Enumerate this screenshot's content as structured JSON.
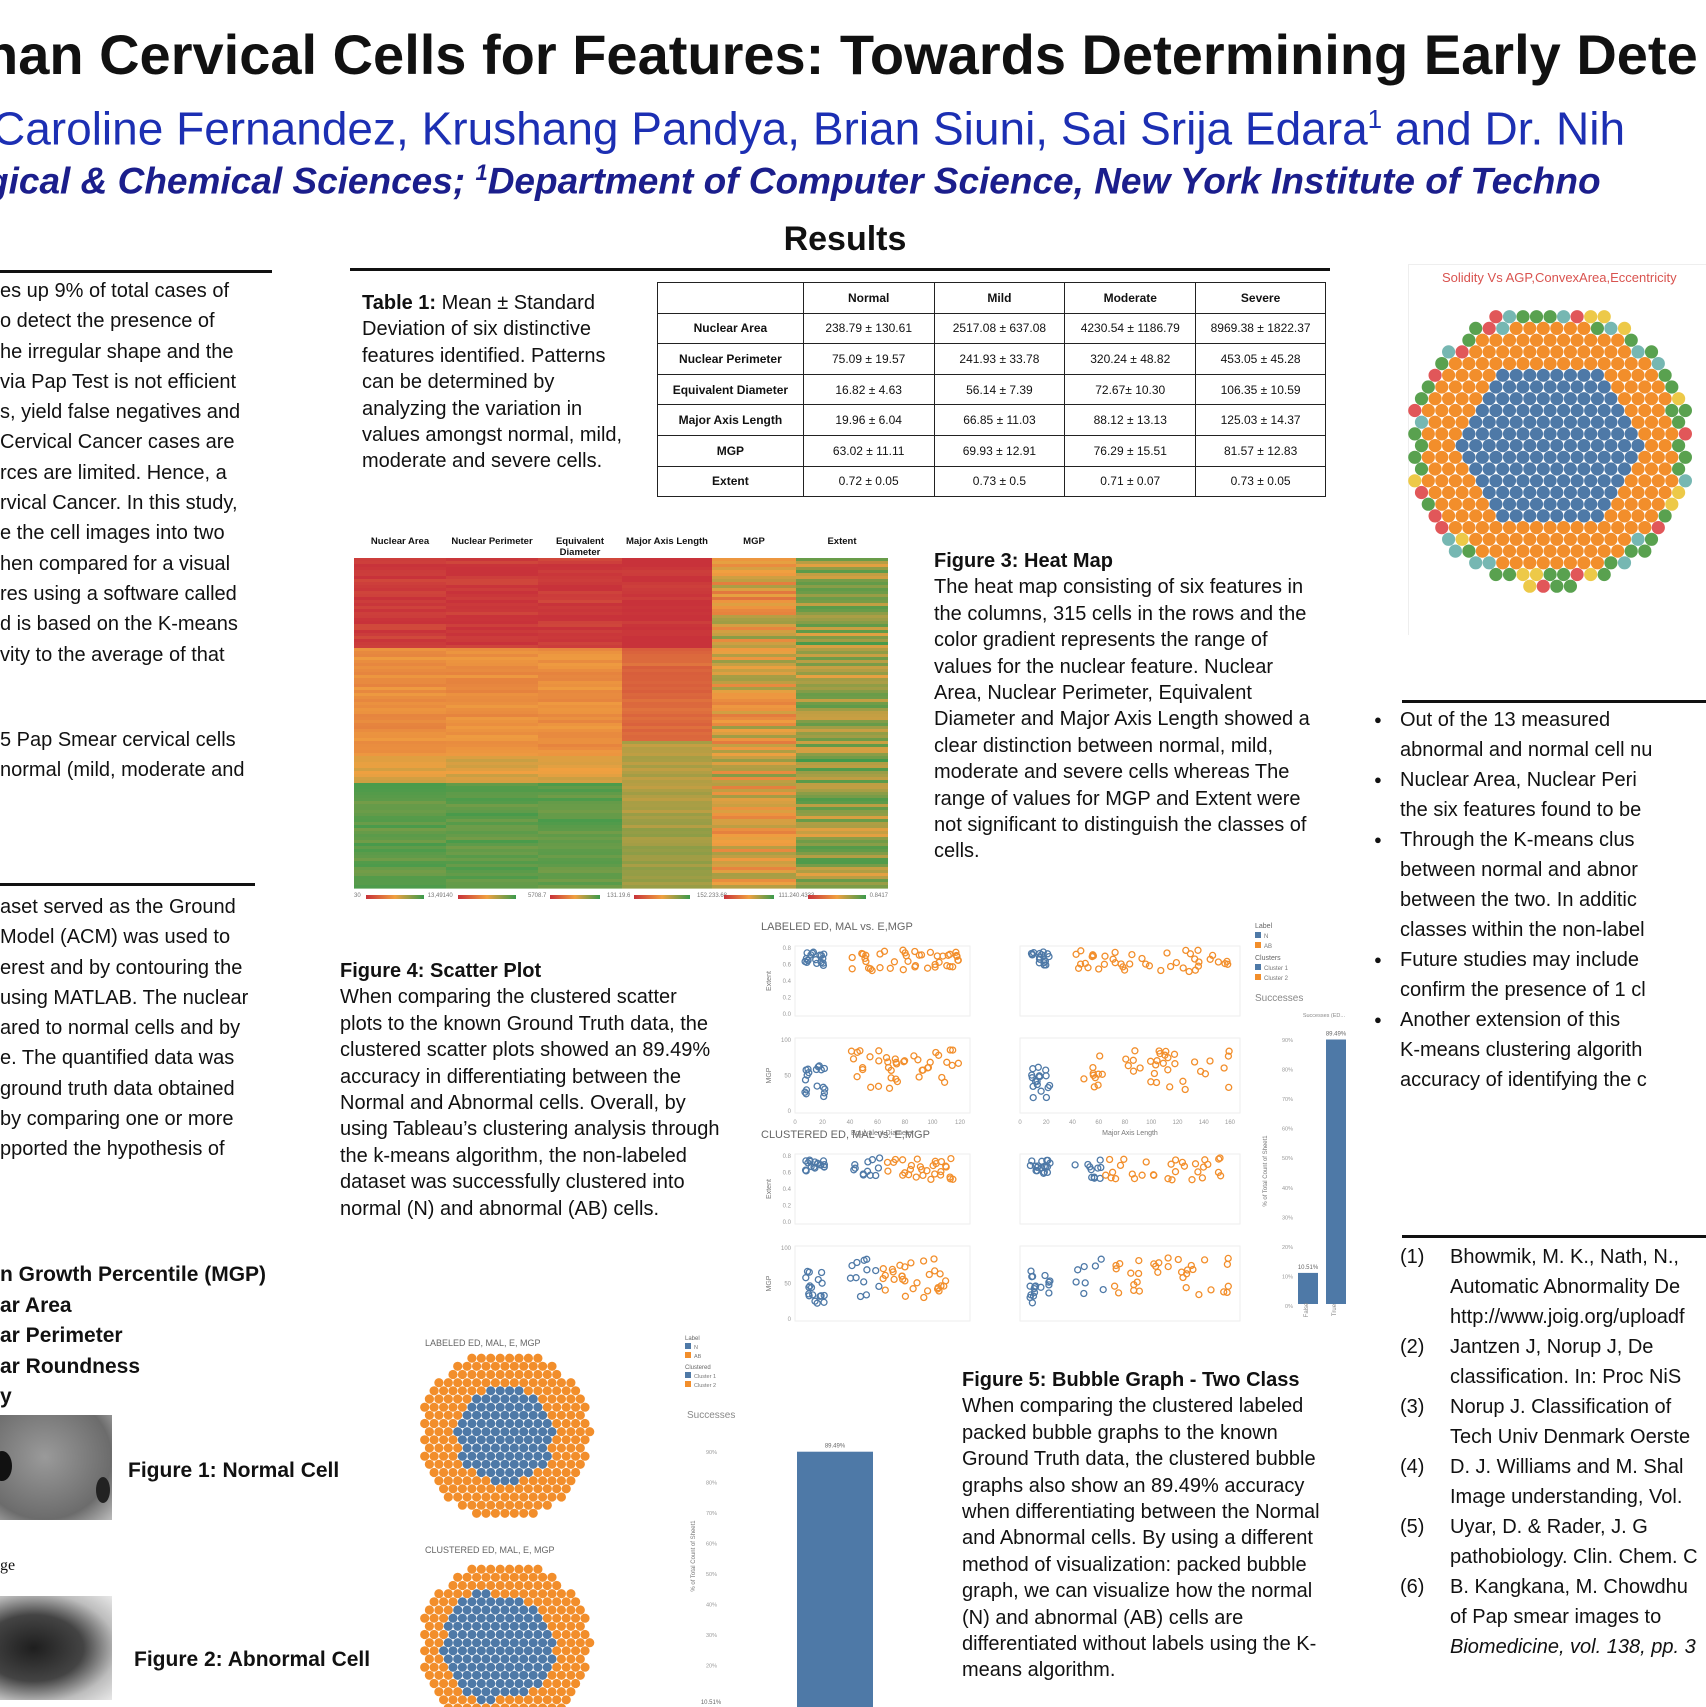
{
  "header": {
    "title": "nan Cervical Cells for Features: Towards Determining Early Dete",
    "authors_main": "Caroline Fernandez, Krushang Pandya, Brian Siuni, Sai Srija Edara",
    "authors_sup": "1",
    "authors_tail": " and Dr. Nih",
    "affiliation_pre": "gical & Chemical Sciences; ",
    "affiliation_sup": "1",
    "affiliation_post": "Department of Computer Science, New York Institute of Techno"
  },
  "results_heading": "Results",
  "left": {
    "intro_lines": [
      "es up 9% of total cases of",
      "o detect the presence of",
      "he irregular shape and the",
      "via Pap Test is not efficient",
      "s, yield false negatives and",
      "Cervical Cancer cases are",
      "rces are limited. Hence, a",
      "rvical Cancer. In this study,",
      "e the cell images into two",
      "hen compared for a visual",
      "res using a software called",
      "d is based on the K-means",
      "vity to the average of that"
    ],
    "data_lines": [
      "5 Pap Smear cervical cells",
      "normal (mild, moderate and"
    ],
    "method_lines": [
      "aset served as the Ground",
      "Model (ACM) was used to",
      "erest and by contouring the",
      "using MATLAB. The nuclear",
      "ared to normal cells and by",
      "e. The quantified data was",
      "ground truth data obtained",
      "by comparing one or more",
      "pported the hypothesis of"
    ],
    "features": [
      "n Growth Percentile (MGP)",
      "ar  Area",
      "ar Perimeter",
      "ar Roundness",
      "y"
    ],
    "fig1_label": "Figure 1: Normal Cell",
    "fig2_label": "Figure 2: Abnormal Cell",
    "img_caption_fragment": "ge"
  },
  "table1": {
    "caption_bold": "Table 1:",
    "caption_text": " Mean ± Standard Deviation of six distinctive features identified. Patterns can be determined by analyzing the variation in values amongst normal, mild, moderate and severe cells.",
    "columns": [
      "",
      "Normal",
      "Mild",
      "Moderate",
      "Severe"
    ],
    "rows": [
      [
        "Nuclear Area",
        "238.79 ± 130.61",
        "2517.08 ± 637.08",
        "4230.54 ± 1186.79",
        "8969.38 ± 1822.37"
      ],
      [
        "Nuclear Perimeter",
        "75.09 ± 19.57",
        "241.93 ± 33.78",
        "320.24 ± 48.82",
        "453.05 ± 45.28"
      ],
      [
        "Equivalent Diameter",
        "16.82 ± 4.63",
        "56.14 ± 7.39",
        "72.67± 10.30",
        "106.35 ± 10.59"
      ],
      [
        "Major Axis Length",
        "19.96 ± 6.04",
        "66.85 ± 11.03",
        "88.12 ± 13.13",
        "125.03 ± 14.37"
      ],
      [
        "MGP",
        "63.02 ± 11.11",
        "69.93 ± 12.91",
        "76.29 ± 15.51",
        "81.57 ± 12.83"
      ],
      [
        "Extent",
        "0.72 ± 0.05",
        "0.73 ± 0.5",
        "0.71 ± 0.07",
        "0.73 ± 0.05"
      ]
    ]
  },
  "heatmap": {
    "columns": [
      "Nuclear Area",
      "Nuclear Perimeter",
      "Equivalent Diameter",
      "Major Axis Length",
      "MGP",
      "Extent"
    ],
    "scale_labels": [
      [
        "30",
        "13,491"
      ],
      [
        "40",
        "570"
      ],
      [
        "8.7",
        "131.1"
      ],
      [
        "9.6",
        "152.2"
      ],
      [
        "33.68",
        "111.24"
      ],
      [
        "0.4333",
        "0.8417"
      ]
    ],
    "colors": {
      "red": "#c8323a",
      "orange": "#f0a040",
      "green": "#3a9a4c"
    }
  },
  "fig3": {
    "title": "Figure 3: Heat Map",
    "text": "The heat map consisting of six features in the columns, 315 cells in the rows and the color gradient represents the range of values for the nuclear feature. Nuclear Area, Nuclear Perimeter, Equivalent Diameter and Major Axis Length showed a clear distinction between normal, mild, moderate and severe cells whereas The range of values for MGP and Extent were not significant to distinguish the classes of cells."
  },
  "fig4": {
    "title": "Figure 4: Scatter Plot",
    "text": "When comparing the clustered scatter plots to the known Ground Truth data, the clustered scatter plots showed an 89.49% accuracy in differentiating between the Normal and Abnormal cells. Overall, by using Tableau’s clustering analysis through the k-means algorithm, the non-labeled dataset was successfully clustered into normal (N) and abnormal (AB) cells."
  },
  "scatter": {
    "labeled_title": "LABELED ED, MAL vs. E,MGP",
    "clustered_title": "CLUSTERED ED, MAL vs. E,MGP",
    "ylabels": [
      "Extent",
      "MGP"
    ],
    "xlabels": [
      "Equivalent Diameter",
      "Major Axis Length"
    ],
    "xticks_ed": [
      "0",
      "20",
      "40",
      "60",
      "80",
      "100",
      "120"
    ],
    "xticks_mal": [
      "0",
      "20",
      "40",
      "60",
      "80",
      "100",
      "120",
      "140",
      "160"
    ],
    "yticks_extent": [
      "0.8",
      "0.6",
      "0.4",
      "0.2",
      "0.0"
    ],
    "yticks_mgp": [
      "100",
      "50",
      "0"
    ],
    "legend": {
      "label_title": "Label",
      "label_items": [
        "N",
        "AB"
      ],
      "clusters_title": "Clusters",
      "cluster_items": [
        "Cluster 1",
        "Cluster 2"
      ],
      "successes_title": "Successes",
      "successes_sub": "Successes (ED..."
    },
    "colors": {
      "blue": "#4e79a7",
      "orange": "#f28e2b"
    }
  },
  "success_bar": {
    "ylabel": "% of Total Count of Sheet1",
    "yticks": [
      "90%",
      "80%",
      "70%",
      "60%",
      "50%",
      "40%",
      "30%",
      "20%",
      "10%",
      "0%"
    ],
    "categories": [
      "False",
      "True"
    ],
    "value_labels": [
      "10.51%",
      "89.49%"
    ]
  },
  "bubbles_right": {
    "title": "Solidity Vs AGP,ConvexArea,Eccentricity"
  },
  "bubbles_mid": {
    "labeled_title": "LABELED ED, MAL, E, MGP",
    "clustered_title": "CLUSTERED ED, MAL, E, MGP",
    "legend": {
      "label_title": "Label",
      "label_items": [
        "N",
        "AB"
      ],
      "clusters_title": "Clustered",
      "cluster_items": [
        "Cluster 1",
        "Cluster 2"
      ]
    },
    "successes_title": "Successes"
  },
  "chart_data": [
    {
      "type": "bar",
      "title": "Successes",
      "categories": [
        "False",
        "True"
      ],
      "values": [
        10.51,
        89.49
      ],
      "ylabel": "% of Total Count of Sheet1",
      "ylim": [
        0,
        90
      ]
    },
    {
      "type": "bar",
      "title": "Successes",
      "categories": [
        "False",
        "True"
      ],
      "values": [
        10.51,
        89.49
      ],
      "ylabel": "% of Total Count of Sheet1",
      "ylim": [
        0,
        90
      ]
    }
  ],
  "fig5": {
    "title": "Figure 5: Bubble Graph - Two Class",
    "text": "When comparing the clustered labeled packed bubble graphs to the known Ground Truth data, the clustered bubble graphs also show an 89.49% accuracy when differentiating between the Normal and Abnormal cells. By using a different method of visualization: packed bubble graph, we can visualize how the normal (N) and abnormal (AB) cells are differentiated without labels using the K-means algorithm."
  },
  "conclusions": [
    [
      "Out  of  the  13  measured",
      "abnormal and normal cell nu"
    ],
    [
      "Nuclear Area, Nuclear Peri",
      "the six features found to be"
    ],
    [
      "Through  the  K-means  clus",
      "between  normal  and  abnor",
      "between  the  two.  In  additic",
      "classes within the non-label"
    ],
    [
      "Future studies may include",
      "confirm the presence of 1 cl"
    ],
    [
      "Another  extension  of  this",
      "K-means  clustering  algorith",
      "accuracy of  identifying the c"
    ]
  ],
  "references": [
    {
      "num": "(1)",
      "lines": [
        "Bhowmik, M. K., Nath, N.,",
        "Automatic Abnormality De",
        "http://www.joig.org/uploadf"
      ]
    },
    {
      "num": "(2)",
      "lines": [
        "Jantzen  J,  Norup  J,  De",
        "classification. In: Proc NiS"
      ]
    },
    {
      "num": "(3)",
      "lines": [
        "Norup J. Classification of",
        "Tech Univ Denmark Oerste"
      ]
    },
    {
      "num": "(4)",
      "lines": [
        "D. J. Williams and M. Shal",
        "Image understanding, Vol."
      ]
    },
    {
      "num": "(5)",
      "lines": [
        "Uyar,  D.  &  Rader,  J.  G",
        "pathobiology. Clin. Chem. C"
      ]
    },
    {
      "num": "(6)",
      "lines": [
        "B. Kangkana, M. Chowdhu",
        "of  Pap  smear  images  to",
        "Biomedicine, vol. 138, pp. 3"
      ]
    }
  ]
}
